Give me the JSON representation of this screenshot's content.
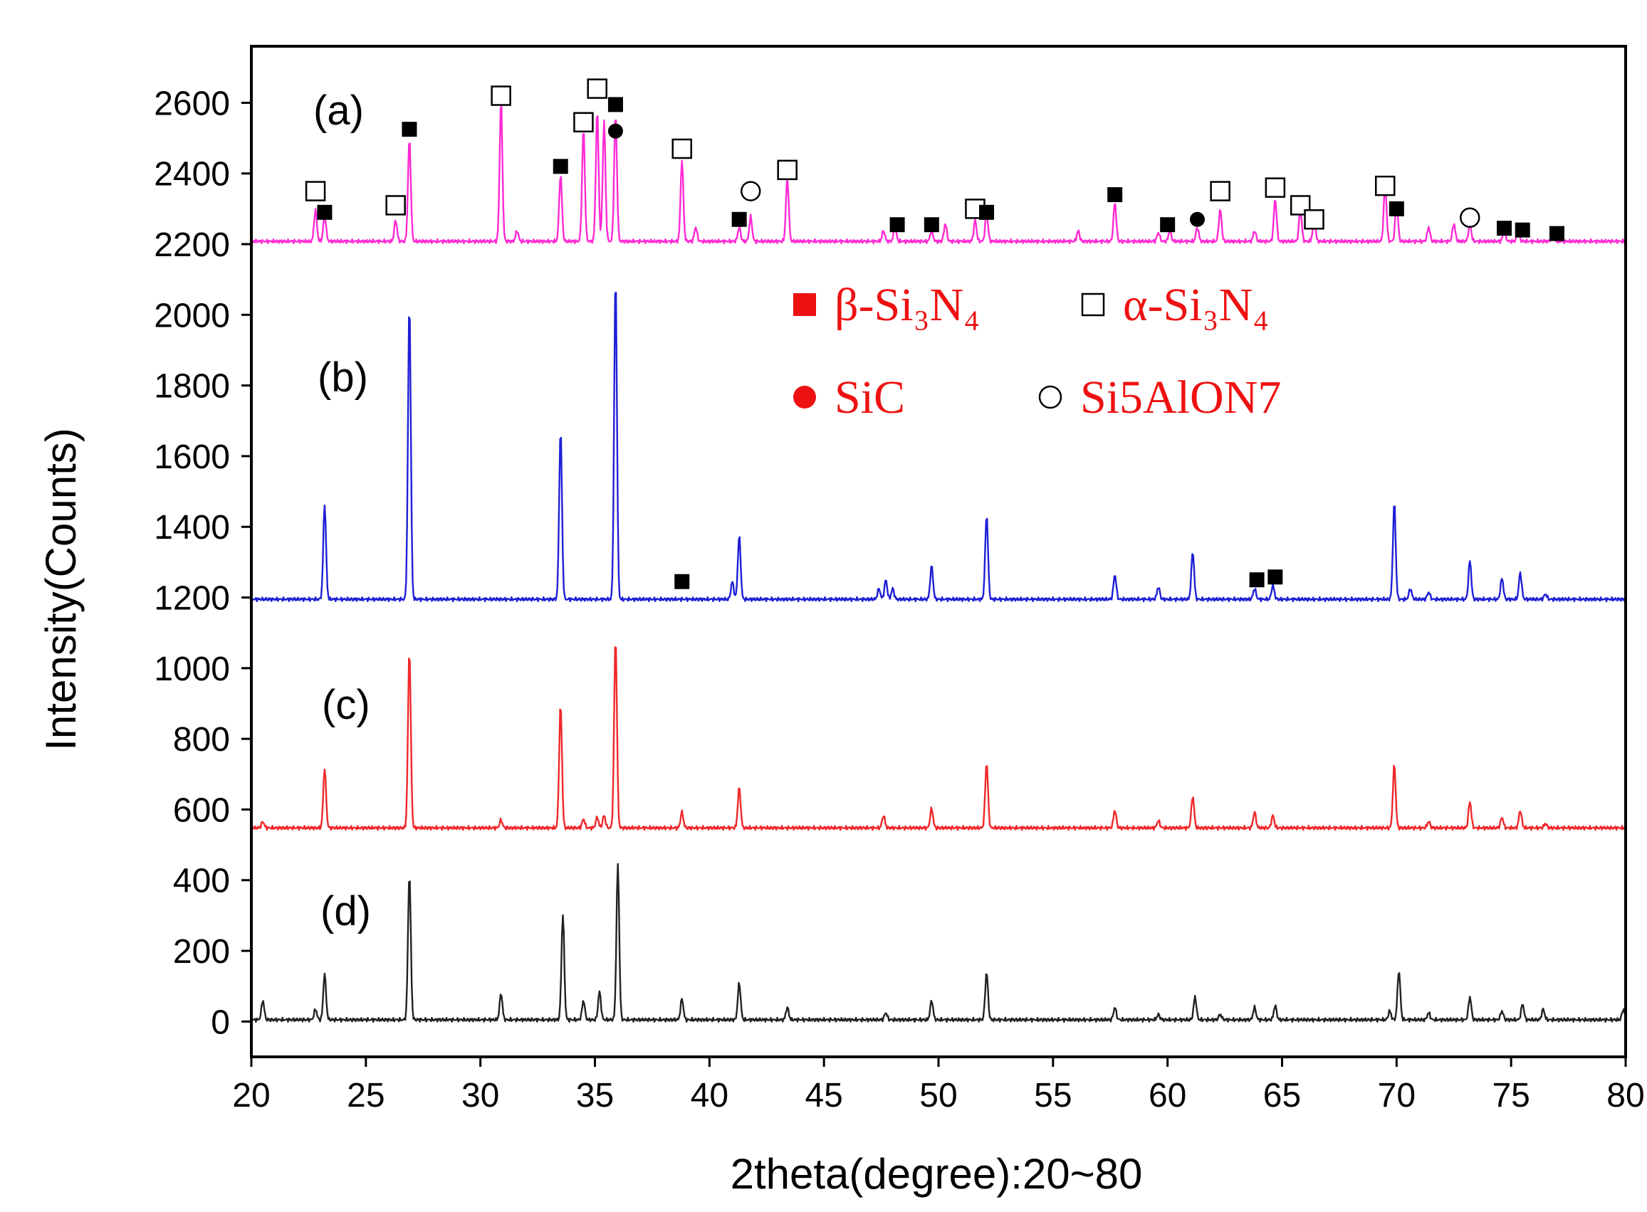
{
  "chart_data": {
    "type": "line",
    "title": "",
    "xlabel": "2theta(degree):20~80",
    "ylabel": "Intensity(Counts)",
    "xlim": [
      20,
      80
    ],
    "ylim": [
      -100,
      2760
    ],
    "x_ticks": [
      20,
      25,
      30,
      35,
      40,
      45,
      50,
      55,
      60,
      65,
      70,
      75,
      80
    ],
    "y_ticks": [
      0,
      200,
      400,
      600,
      800,
      1000,
      1200,
      1400,
      1600,
      1800,
      2000,
      2200,
      2400,
      2600
    ],
    "colors": {
      "a": "#ff2ad4",
      "b": "#1f1fd6",
      "c": "#f0282a",
      "d": "#222222",
      "legend": "#ee1111"
    },
    "series": [
      {
        "key": "a",
        "name": "(a)",
        "baseline": 2208,
        "peaks": [
          [
            22.8,
            90
          ],
          [
            23.2,
            75
          ],
          [
            26.3,
            60
          ],
          [
            26.9,
            290
          ],
          [
            30.9,
            400
          ],
          [
            31.6,
            30
          ],
          [
            33.5,
            190
          ],
          [
            34.5,
            320
          ],
          [
            35.1,
            370
          ],
          [
            35.4,
            340
          ],
          [
            35.9,
            360
          ],
          [
            38.8,
            230
          ],
          [
            39.4,
            40
          ],
          [
            41.3,
            40
          ],
          [
            41.8,
            70
          ],
          [
            43.4,
            180
          ],
          [
            47.6,
            30
          ],
          [
            48.1,
            40
          ],
          [
            49.7,
            30
          ],
          [
            50.3,
            50
          ],
          [
            51.6,
            60
          ],
          [
            52.1,
            80
          ],
          [
            56.1,
            30
          ],
          [
            57.7,
            110
          ],
          [
            59.6,
            25
          ],
          [
            60.1,
            30
          ],
          [
            61.3,
            40
          ],
          [
            62.3,
            90
          ],
          [
            63.8,
            30
          ],
          [
            64.7,
            120
          ],
          [
            65.8,
            90
          ],
          [
            66.4,
            60
          ],
          [
            69.5,
            160
          ],
          [
            70.0,
            110
          ],
          [
            71.4,
            40
          ],
          [
            72.5,
            50
          ],
          [
            73.2,
            50
          ],
          [
            74.7,
            30
          ],
          [
            75.3,
            25
          ],
          [
            76.8,
            20
          ]
        ]
      },
      {
        "key": "b",
        "name": "(b)",
        "baseline": 1195,
        "peaks": [
          [
            23.2,
            270
          ],
          [
            26.9,
            840
          ],
          [
            33.5,
            480
          ],
          [
            35.9,
            915
          ],
          [
            41.0,
            50
          ],
          [
            41.3,
            180
          ],
          [
            47.4,
            30
          ],
          [
            47.7,
            55
          ],
          [
            48.0,
            30
          ],
          [
            49.7,
            95
          ],
          [
            52.1,
            240
          ],
          [
            57.7,
            70
          ],
          [
            59.6,
            35
          ],
          [
            61.1,
            135
          ],
          [
            63.8,
            30
          ],
          [
            64.6,
            40
          ],
          [
            69.9,
            275
          ],
          [
            70.6,
            30
          ],
          [
            71.4,
            20
          ],
          [
            73.2,
            110
          ],
          [
            74.6,
            60
          ],
          [
            75.4,
            75
          ],
          [
            76.5,
            15
          ]
        ]
      },
      {
        "key": "c",
        "name": "(c)",
        "baseline": 548,
        "peaks": [
          [
            20.5,
            18
          ],
          [
            23.2,
            170
          ],
          [
            26.9,
            505
          ],
          [
            30.9,
            22
          ],
          [
            33.5,
            350
          ],
          [
            34.5,
            25
          ],
          [
            35.1,
            30
          ],
          [
            35.4,
            35
          ],
          [
            35.9,
            540
          ],
          [
            38.8,
            45
          ],
          [
            41.3,
            115
          ],
          [
            47.6,
            35
          ],
          [
            49.7,
            55
          ],
          [
            52.1,
            185
          ],
          [
            57.7,
            50
          ],
          [
            59.6,
            20
          ],
          [
            61.1,
            90
          ],
          [
            63.8,
            45
          ],
          [
            64.6,
            35
          ],
          [
            69.9,
            180
          ],
          [
            71.4,
            18
          ],
          [
            73.2,
            75
          ],
          [
            74.6,
            30
          ],
          [
            75.4,
            50
          ],
          [
            76.5,
            12
          ]
        ]
      },
      {
        "key": "d",
        "name": "(d)",
        "baseline": 5,
        "peaks": [
          [
            20.5,
            55
          ],
          [
            22.8,
            30
          ],
          [
            23.2,
            130
          ],
          [
            26.9,
            415
          ],
          [
            30.9,
            75
          ],
          [
            33.6,
            300
          ],
          [
            34.5,
            55
          ],
          [
            35.2,
            80
          ],
          [
            36.0,
            440
          ],
          [
            38.8,
            60
          ],
          [
            41.3,
            105
          ],
          [
            43.4,
            35
          ],
          [
            47.7,
            20
          ],
          [
            49.7,
            55
          ],
          [
            52.1,
            135
          ],
          [
            57.7,
            35
          ],
          [
            59.6,
            15
          ],
          [
            61.2,
            65
          ],
          [
            62.3,
            15
          ],
          [
            63.8,
            35
          ],
          [
            64.7,
            40
          ],
          [
            69.7,
            25
          ],
          [
            70.1,
            140
          ],
          [
            71.4,
            20
          ],
          [
            73.2,
            65
          ],
          [
            74.6,
            25
          ],
          [
            75.5,
            45
          ],
          [
            76.4,
            30
          ],
          [
            79.9,
            30
          ]
        ]
      }
    ],
    "markers": [
      {
        "x": 22.8,
        "y": 2350,
        "s": "alpha"
      },
      {
        "x": 23.2,
        "y": 2290,
        "s": "beta"
      },
      {
        "x": 26.3,
        "y": 2310,
        "s": "alpha"
      },
      {
        "x": 26.9,
        "y": 2525,
        "s": "beta"
      },
      {
        "x": 30.9,
        "y": 2620,
        "s": "alpha"
      },
      {
        "x": 33.5,
        "y": 2420,
        "s": "beta"
      },
      {
        "x": 34.5,
        "y": 2545,
        "s": "alpha"
      },
      {
        "x": 35.1,
        "y": 2640,
        "s": "alpha"
      },
      {
        "x": 35.9,
        "y": 2595,
        "s": "beta"
      },
      {
        "x": 35.9,
        "y": 2520,
        "s": "sic"
      },
      {
        "x": 38.8,
        "y": 2470,
        "s": "alpha"
      },
      {
        "x": 41.3,
        "y": 2270,
        "s": "beta"
      },
      {
        "x": 41.8,
        "y": 2350,
        "s": "si5alon7"
      },
      {
        "x": 43.4,
        "y": 2410,
        "s": "alpha"
      },
      {
        "x": 48.2,
        "y": 2255,
        "s": "beta"
      },
      {
        "x": 49.7,
        "y": 2255,
        "s": "beta"
      },
      {
        "x": 51.6,
        "y": 2300,
        "s": "alpha"
      },
      {
        "x": 52.1,
        "y": 2290,
        "s": "beta"
      },
      {
        "x": 57.7,
        "y": 2340,
        "s": "beta"
      },
      {
        "x": 60.0,
        "y": 2255,
        "s": "beta"
      },
      {
        "x": 61.3,
        "y": 2270,
        "s": "sic"
      },
      {
        "x": 62.3,
        "y": 2350,
        "s": "alpha"
      },
      {
        "x": 64.7,
        "y": 2360,
        "s": "alpha"
      },
      {
        "x": 65.8,
        "y": 2310,
        "s": "alpha"
      },
      {
        "x": 66.4,
        "y": 2270,
        "s": "alpha"
      },
      {
        "x": 69.5,
        "y": 2365,
        "s": "alpha"
      },
      {
        "x": 70.0,
        "y": 2300,
        "s": "beta"
      },
      {
        "x": 73.2,
        "y": 2275,
        "s": "si5alon7"
      },
      {
        "x": 74.7,
        "y": 2245,
        "s": "beta"
      },
      {
        "x": 75.5,
        "y": 2240,
        "s": "beta"
      },
      {
        "x": 77.0,
        "y": 2230,
        "s": "beta"
      },
      {
        "x": 38.8,
        "y": 1245,
        "s": "beta"
      },
      {
        "x": 63.9,
        "y": 1250,
        "s": "beta"
      },
      {
        "x": 64.7,
        "y": 1258,
        "s": "beta"
      }
    ],
    "legend": [
      {
        "symbol": "beta",
        "text": "β-Si₃N₄"
      },
      {
        "symbol": "alpha",
        "text": "α-Si₃N₄"
      },
      {
        "symbol": "sic",
        "text": "SiC"
      },
      {
        "symbol": "si5alon7",
        "text": "Si5AlON7"
      }
    ]
  }
}
